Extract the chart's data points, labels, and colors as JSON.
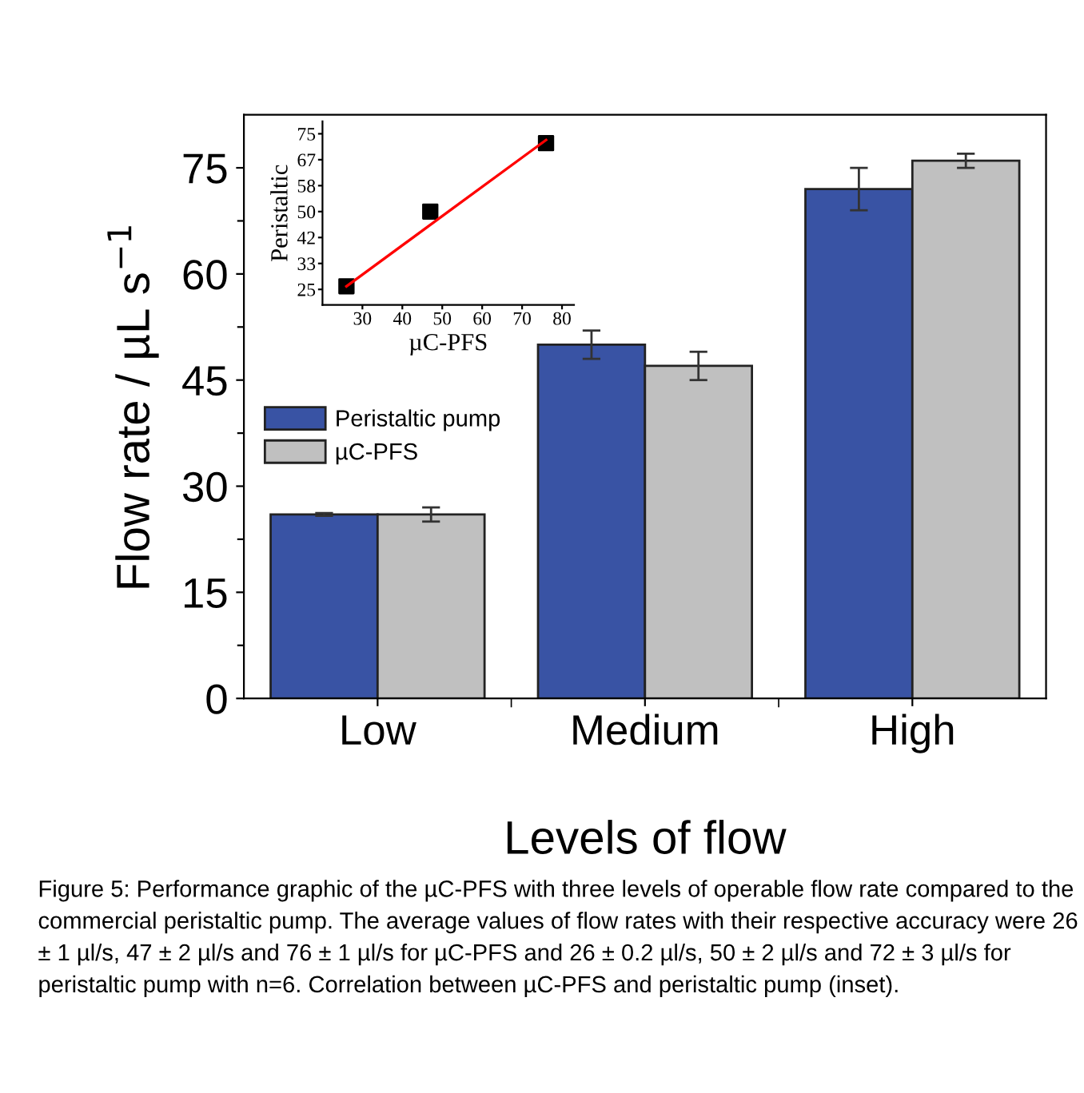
{
  "chart_data": [
    {
      "type": "bar",
      "xlabel": "Levels of flow",
      "ylabel": "Flow rate / µL s$^{−1}$",
      "categories": [
        "Low",
        "Medium",
        "High"
      ],
      "series": [
        {
          "name": "Peristaltic pump",
          "color": "#3953a4",
          "values": [
            26,
            50,
            72
          ],
          "errors": [
            0.2,
            2,
            3
          ]
        },
        {
          "name": "µC-PFS",
          "color": "#c0c0c0",
          "values": [
            26,
            47,
            76
          ],
          "errors": [
            1,
            2,
            1
          ]
        }
      ],
      "ylim": [
        0,
        82.5
      ],
      "yticks": [
        0,
        {
          "value": 7.5,
          "label": null
        },
        15,
        {
          "value": 22.5,
          "label": null
        },
        30,
        {
          "value": 37.5,
          "label": null
        },
        45,
        {
          "value": 52.5,
          "label": null
        },
        60,
        {
          "value": 67.5,
          "label": null
        },
        75
      ],
      "legend": "left",
      "grid": false,
      "annotations": [
        "Figure 5: Performance graphic of the µC-PFS with three levels of operable flow rate compared to the commercial peristaltic pump. The average values of flow rates with their respective accuracy were 26 ± 1 µl/s, 47 ± 2 µl/s and 76 ± 1 µl/s for µC-PFS and 26 ± 0.2 µl/s, 50 ± 2 µl/s and 72 ± 3 µl/s for peristaltic pump with n=6. Correlation between µC-PFS and peristaltic pump (inset)."
      ]
    },
    {
      "type": "scatter",
      "xlabel": "µC-PFS",
      "ylabel": "Peristaltic",
      "series": [
        {
          "type": "scatter",
          "color": "#000000",
          "marker": "square",
          "x": [
            26,
            47,
            76
          ],
          "values": [
            26,
            50,
            72
          ]
        },
        {
          "type": "line",
          "color": "#ff0000",
          "marker": "none",
          "x": [
            26,
            76
          ],
          "values": [
            26,
            73
          ]
        }
      ],
      "xlim": [
        20,
        83
      ],
      "xticks": [
        30,
        40,
        50,
        60,
        70,
        80
      ],
      "ylim": [
        20,
        79
      ],
      "yticks": [
        25,
        {
          "value": 33.33,
          "label": "33"
        },
        {
          "value": 41.67,
          "label": "42"
        },
        50,
        {
          "value": 58.33,
          "label": "58"
        },
        {
          "value": 66.67,
          "label": "67"
        },
        75
      ],
      "grid": false,
      "legend": false
    }
  ]
}
